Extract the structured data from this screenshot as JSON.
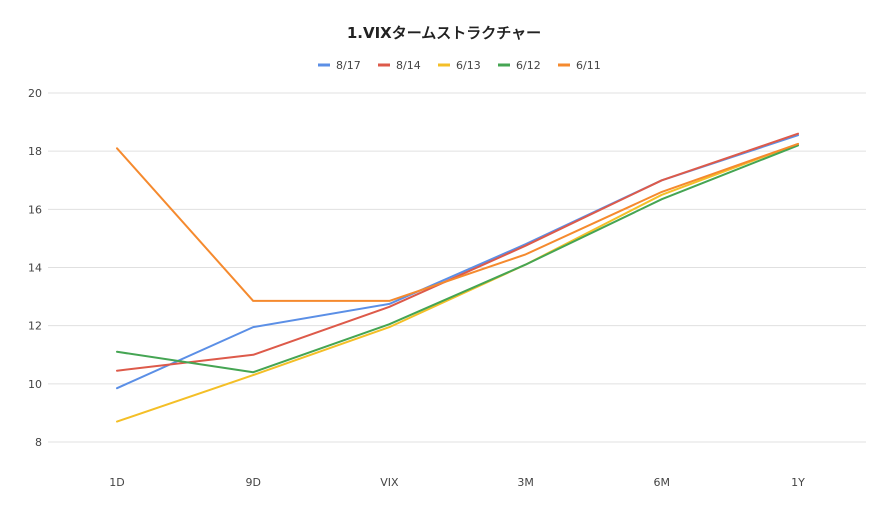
{
  "chart_data": {
    "type": "line",
    "title": "1.VIXタームストラクチャー",
    "categories": [
      "1D",
      "9D",
      "VIX",
      "3M",
      "6M",
      "1Y"
    ],
    "ylim": [
      8,
      20
    ],
    "yticks": [
      8,
      10,
      12,
      14,
      16,
      18,
      20
    ],
    "grid": true,
    "legend_position": "top-center",
    "series": [
      {
        "name": "8/17",
        "color": "#5b8fe6",
        "values": [
          9.85,
          11.95,
          12.75,
          14.8,
          17.0,
          18.55
        ]
      },
      {
        "name": "8/14",
        "color": "#dd5a4a",
        "values": [
          10.45,
          11.0,
          12.65,
          14.75,
          17.0,
          18.6
        ]
      },
      {
        "name": "6/13",
        "color": "#f4bf27",
        "values": [
          8.7,
          10.3,
          11.95,
          14.1,
          16.5,
          18.25
        ]
      },
      {
        "name": "6/12",
        "color": "#45a553",
        "values": [
          11.1,
          10.4,
          12.05,
          14.1,
          16.35,
          18.2
        ]
      },
      {
        "name": "6/11",
        "color": "#f58a2e",
        "values": [
          18.1,
          12.85,
          12.85,
          14.45,
          16.6,
          18.25
        ]
      }
    ]
  }
}
